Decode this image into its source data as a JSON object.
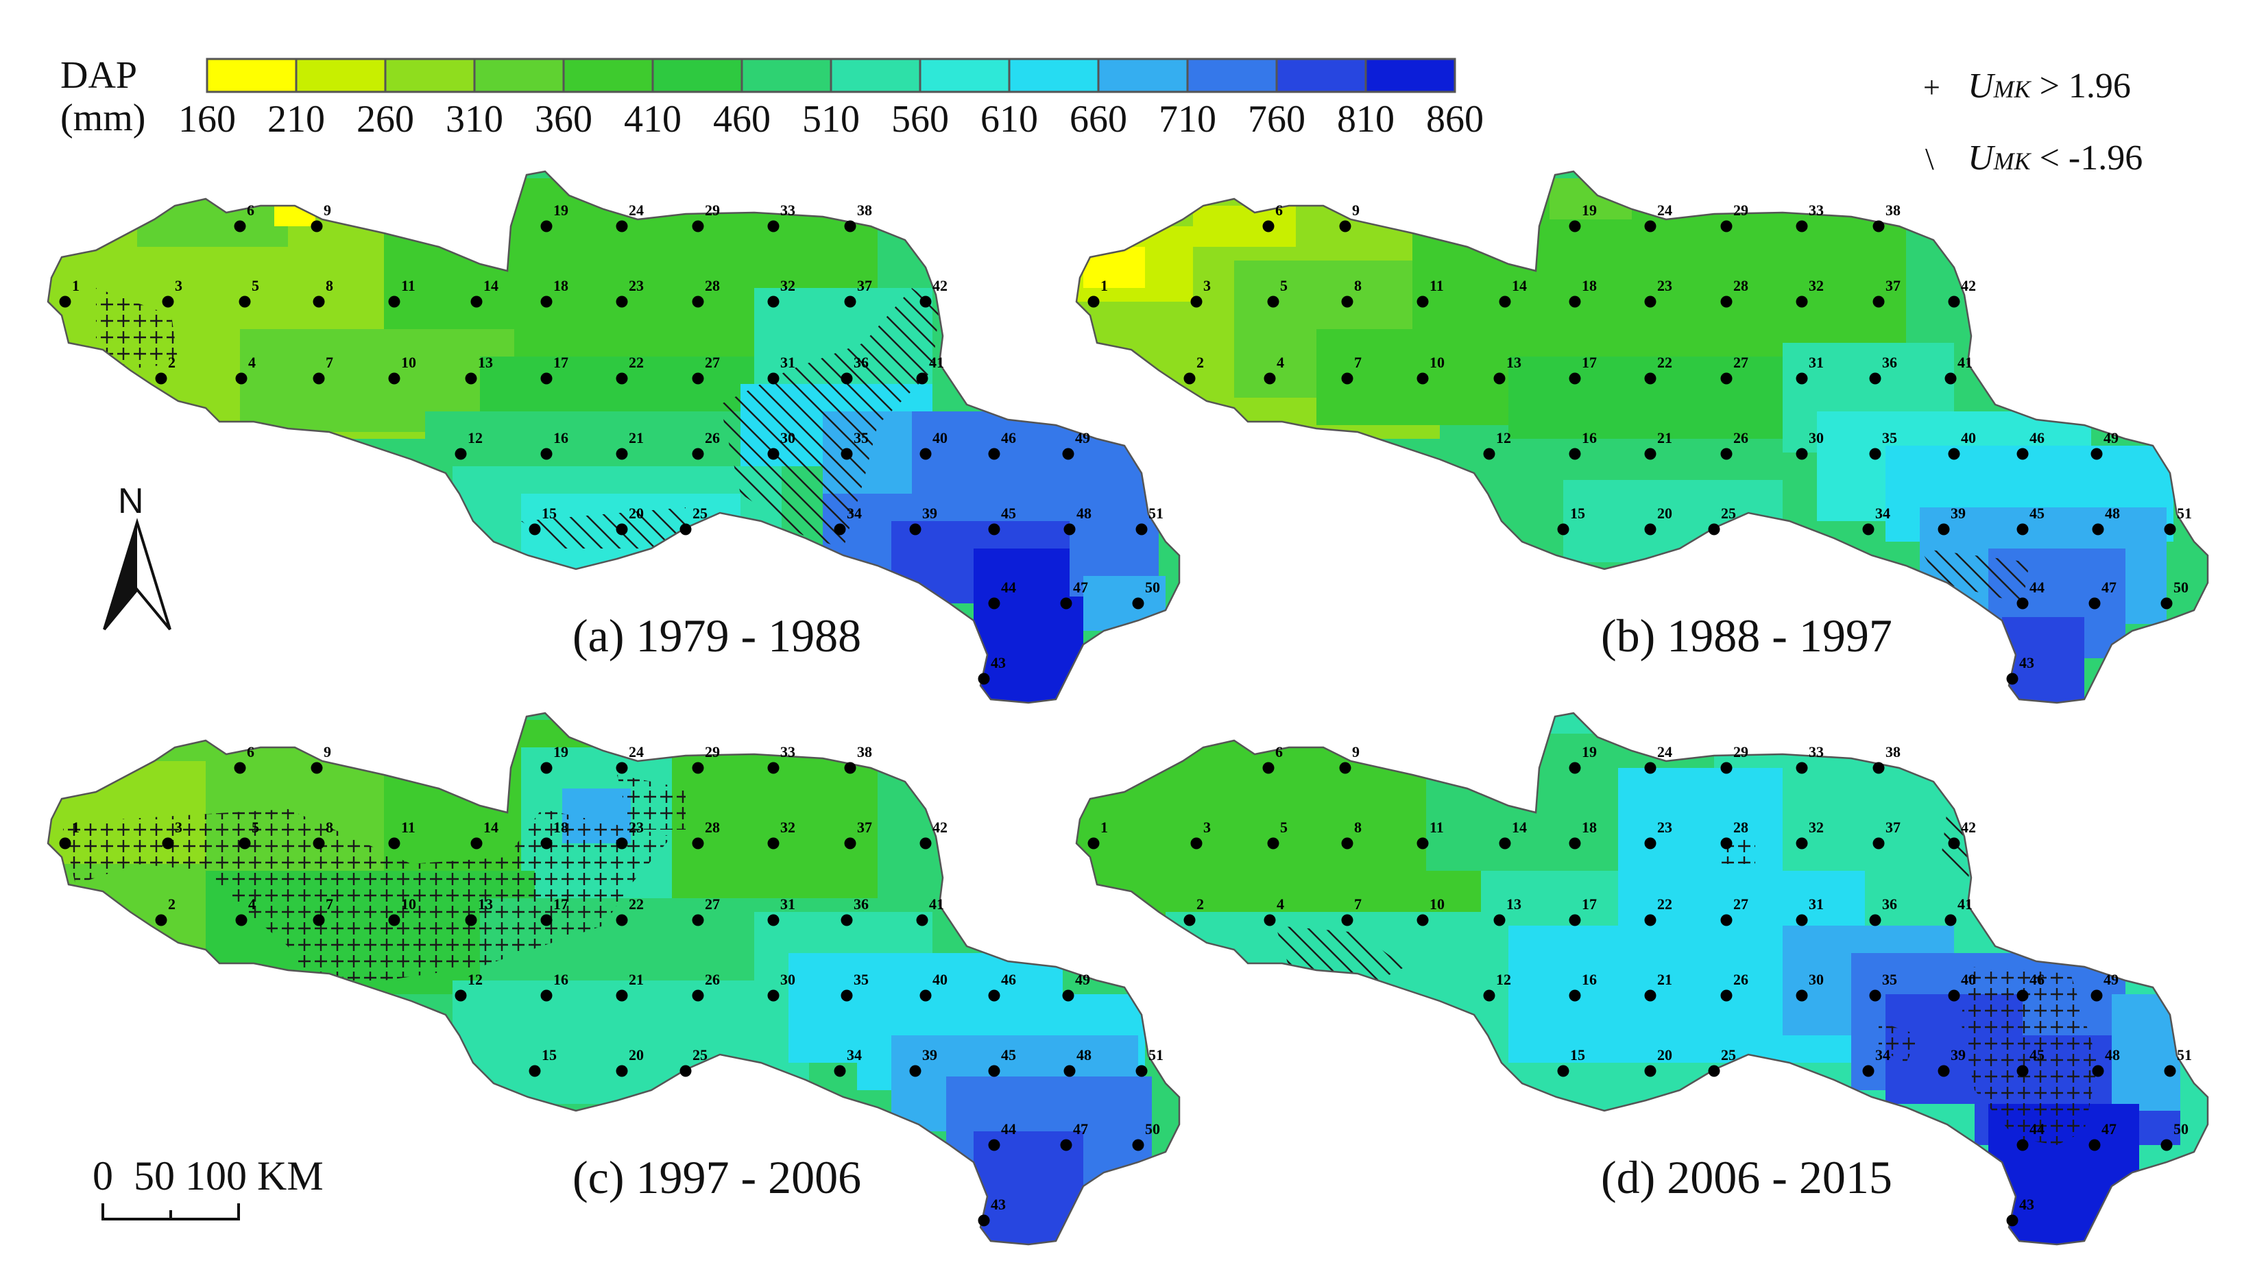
{
  "legend": {
    "title_line1": "DAP",
    "title_line2": "(mm)",
    "ticks": [
      "160",
      "210",
      "260",
      "310",
      "360",
      "410",
      "460",
      "510",
      "560",
      "610",
      "660",
      "710",
      "760",
      "810",
      "860"
    ],
    "colors": [
      "#ffff00",
      "#c8ef00",
      "#8fdd1e",
      "#5fd231",
      "#3ecb2e",
      "#2ec940",
      "#2ed272",
      "#2ee0a8",
      "#2ee8d8",
      "#26dcf2",
      "#35aef0",
      "#3578ea",
      "#2746e0",
      "#0c1ed8"
    ]
  },
  "significance": {
    "plus_symbol": "+",
    "plus_var": "U",
    "plus_sub": "MK",
    "plus_text": " > 1.96",
    "minus_symbol": "\\",
    "minus_var": "U",
    "minus_sub": "MK",
    "minus_text": " < -1.96"
  },
  "north_arrow": {
    "label": "N"
  },
  "scale_bar": {
    "label": "0  50 100 KM"
  },
  "panels": [
    {
      "title": "(a) 1979 - 1988",
      "palette": "a"
    },
    {
      "title": "(b) 1988 - 1997",
      "palette": "b"
    },
    {
      "title": "(c) 1997 - 2006",
      "palette": "c"
    },
    {
      "title": "(d) 2006 - 2015",
      "palette": "d"
    }
  ],
  "stations": [
    "1",
    "2",
    "3",
    "4",
    "5",
    "6",
    "7",
    "8",
    "9",
    "10",
    "11",
    "12",
    "13",
    "14",
    "15",
    "16",
    "17",
    "18",
    "19",
    "20",
    "21",
    "22",
    "23",
    "24",
    "25",
    "26",
    "27",
    "28",
    "29",
    "30",
    "31",
    "32",
    "33",
    "34",
    "35",
    "36",
    "37",
    "38",
    "39",
    "40",
    "41",
    "42",
    "43",
    "44",
    "45",
    "46",
    "47",
    "48",
    "49",
    "50",
    "51"
  ]
}
